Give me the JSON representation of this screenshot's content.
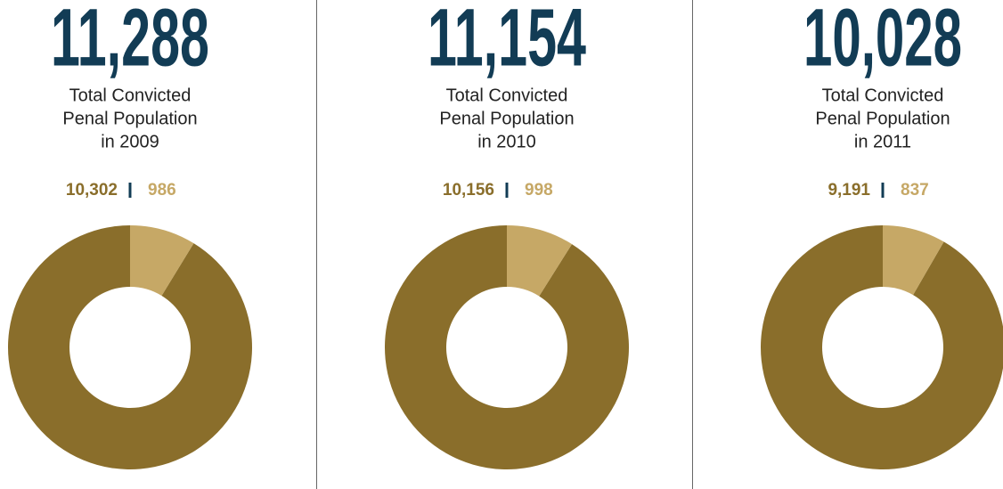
{
  "chart_data": [
    {
      "type": "donut",
      "title": "11,288",
      "subtitle": [
        "Total Convicted",
        "Penal Population",
        "in 2009"
      ],
      "values": [
        10302,
        986
      ],
      "value_labels": [
        "10,302",
        "986"
      ],
      "colors": [
        "#8a6e2b",
        "#c6a866"
      ]
    },
    {
      "type": "donut",
      "title": "11,154",
      "subtitle": [
        "Total Convicted",
        "Penal Population",
        "in 2010"
      ],
      "values": [
        10156,
        998
      ],
      "value_labels": [
        "10,156",
        "998"
      ],
      "colors": [
        "#8a6e2b",
        "#c6a866"
      ]
    },
    {
      "type": "donut",
      "title": "10,028",
      "subtitle": [
        "Total Convicted",
        "Penal Population",
        "in 2011"
      ],
      "values": [
        9191,
        837
      ],
      "value_labels": [
        "9,191",
        "837"
      ],
      "colors": [
        "#8a6e2b",
        "#c6a866"
      ]
    }
  ]
}
